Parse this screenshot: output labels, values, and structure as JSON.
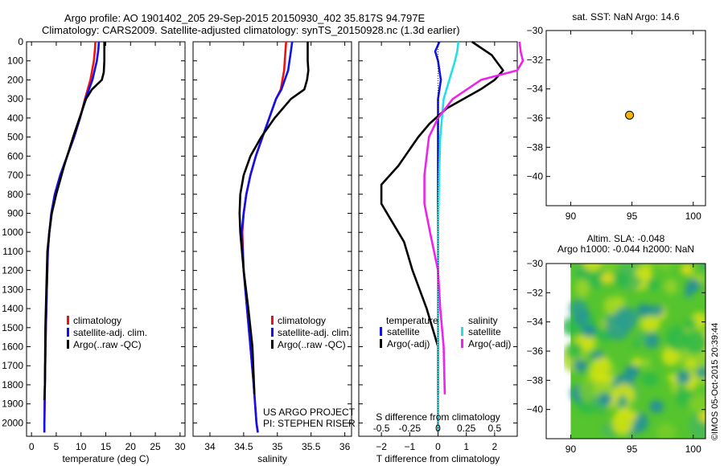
{
  "header": {
    "line1": "Argo profile: AO 1901402_205 29-Sep-2015 20150930_402 35.817S 94.797E",
    "line2": "Climatology: CARS2009. Satellite-adjusted climatology: synTS_20150928.nc (1.3d earlier)"
  },
  "colors": {
    "red": "#ee1111",
    "blue": "#1111ee",
    "black": "#000000",
    "cyan": "#22e0e8",
    "magenta": "#ee22ee",
    "marker": "#f2b705"
  },
  "chart_data": [
    {
      "type": "line",
      "id": "temperature",
      "xlabel": "temperature (deg C)",
      "ylabel": "",
      "xlim": [
        -1,
        31
      ],
      "ylim": [
        0,
        2070
      ],
      "xticks": [
        0,
        5,
        10,
        15,
        20,
        25,
        30
      ],
      "yticks": [
        0,
        100,
        200,
        300,
        400,
        500,
        600,
        700,
        800,
        900,
        1000,
        1100,
        1200,
        1300,
        1400,
        1500,
        1600,
        1700,
        1800,
        1900,
        2000
      ],
      "series": [
        {
          "name": "climatology",
          "color": "red",
          "x": [
            12.9,
            12.8,
            12.6,
            11.9,
            10.8,
            9.8,
            8.6,
            7.2,
            5.8,
            4.7,
            4.0,
            3.6,
            3.3,
            3.1,
            2.9,
            2.7,
            2.6,
            2.6
          ],
          "y": [
            0,
            40,
            100,
            200,
            300,
            400,
            500,
            600,
            700,
            800,
            900,
            1000,
            1100,
            1300,
            1500,
            1800,
            2000,
            2050
          ]
        },
        {
          "name": "satellite-adj. clim.",
          "color": "blue",
          "x": [
            13.6,
            13.5,
            13.2,
            12.3,
            10.9,
            9.8,
            8.6,
            7.2,
            5.8,
            4.7,
            4.0,
            3.6,
            3.3,
            3.1,
            2.9,
            2.7,
            2.6,
            2.6
          ],
          "y": [
            0,
            40,
            100,
            200,
            300,
            400,
            500,
            600,
            700,
            800,
            900,
            1000,
            1100,
            1300,
            1500,
            1800,
            2000,
            2050
          ]
        },
        {
          "name": "Argo(..raw -QC)",
          "color": "black",
          "x": [
            14.7,
            14.7,
            14.6,
            14.2,
            12.2,
            11.0,
            9.7,
            8.4,
            6.6,
            5.0,
            4.1,
            3.6,
            3.2,
            3.0,
            2.8,
            2.7,
            2.6
          ],
          "y": [
            0,
            100,
            160,
            200,
            250,
            300,
            400,
            500,
            650,
            800,
            900,
            1000,
            1100,
            1300,
            1500,
            1800,
            1880
          ]
        }
      ],
      "legend": [
        "climatology",
        "satellite-adj. clim.",
        "Argo(..raw -QC)"
      ]
    },
    {
      "type": "line",
      "id": "salinity",
      "xlabel": "salinity",
      "ylabel": "",
      "xlim": [
        33.75,
        36.1
      ],
      "ylim": [
        0,
        2070
      ],
      "xticks": [
        34,
        34.5,
        35,
        35.5,
        36
      ],
      "ticklabels": [
        "34",
        "34.5",
        "35",
        "35.5",
        "36"
      ],
      "series": [
        {
          "name": "climatology",
          "color": "red",
          "x": [
            35.13,
            35.12,
            35.1,
            35.05,
            34.98,
            34.88,
            34.78,
            34.68,
            34.6,
            34.54,
            34.5,
            34.48,
            34.5,
            34.55,
            34.6,
            34.65,
            34.69,
            34.71
          ],
          "y": [
            0,
            50,
            150,
            250,
            300,
            400,
            500,
            600,
            700,
            800,
            900,
            1000,
            1200,
            1400,
            1600,
            1800,
            2000,
            2050
          ]
        },
        {
          "name": "satellite-adj. clim.",
          "color": "blue",
          "x": [
            35.22,
            35.2,
            35.16,
            35.06,
            34.98,
            34.88,
            34.78,
            34.68,
            34.6,
            34.54,
            34.5,
            34.47,
            34.5,
            34.55,
            34.6,
            34.65,
            34.69,
            34.71
          ],
          "y": [
            0,
            50,
            150,
            250,
            300,
            400,
            500,
            600,
            700,
            800,
            900,
            1000,
            1200,
            1400,
            1600,
            1800,
            2000,
            2050
          ]
        },
        {
          "name": "Argo(..raw -QC)",
          "color": "black",
          "x": [
            35.45,
            35.45,
            35.46,
            35.44,
            35.4,
            35.2,
            34.96,
            34.76,
            34.6,
            34.5,
            34.45,
            34.44,
            34.45,
            34.5,
            34.57,
            34.63,
            34.66
          ],
          "y": [
            0,
            100,
            150,
            200,
            250,
            300,
            400,
            500,
            600,
            700,
            800,
            900,
            1000,
            1200,
            1400,
            1600,
            1850
          ]
        }
      ],
      "legend": [
        "climatology",
        "satellite-adj. clim.",
        "Argo(..raw -QC)"
      ],
      "annotation": [
        "US ARGO PROJECT",
        "PI: STEPHEN RISER"
      ]
    },
    {
      "type": "line",
      "id": "difference",
      "xlabel": "T difference from climatology",
      "xlabel2": "S difference from climatology",
      "ylabel": "",
      "xlim": [
        -2.8,
        2.8
      ],
      "ylim": [
        0,
        2070
      ],
      "xticks": [
        -2,
        -1,
        0,
        1,
        2
      ],
      "xticks_s": [
        -0.5,
        -0.25,
        0,
        0.25,
        0.5
      ],
      "ticklabels_s": [
        "-0.5",
        "-0.25",
        "0",
        "0.25",
        "0.5"
      ],
      "series": [
        {
          "name": "temperature satellite",
          "color": "blue",
          "x": [
            0.05,
            -0.1,
            0.0,
            0.1,
            0.0,
            0.0,
            0.0,
            0.0,
            0.0,
            0.0,
            0.0,
            0.0
          ],
          "y": [
            0,
            50,
            100,
            200,
            300,
            500,
            700,
            1000,
            1300,
            1600,
            1900,
            2050
          ]
        },
        {
          "name": "temperature Argo(-adj)",
          "color": "black",
          "x": [
            1.2,
            1.9,
            2.3,
            2.0,
            1.5,
            0.3,
            -0.3,
            -0.7,
            -1.4,
            -2.0,
            -2.0,
            -1.6,
            -1.2,
            -0.9,
            -0.4,
            0.0,
            0.0
          ],
          "y": [
            0,
            70,
            150,
            200,
            250,
            350,
            430,
            500,
            650,
            750,
            850,
            950,
            1050,
            1200,
            1400,
            1600,
            1850
          ]
        },
        {
          "name": "salinity satellite",
          "color": "cyan",
          "x": [
            0.18,
            0.17,
            0.15,
            0.1,
            0.05,
            0.02,
            0.01,
            0.0,
            0.0,
            0.0,
            0.0
          ],
          "y": [
            0,
            50,
            100,
            200,
            300,
            500,
            700,
            1000,
            1300,
            1600,
            2050
          ]
        },
        {
          "name": "salinity Argo(-adj)",
          "color": "magenta",
          "x": [
            0.72,
            0.73,
            0.75,
            0.7,
            0.38,
            0.13,
            0.0,
            -0.08,
            -0.12,
            -0.12,
            -0.07,
            0.0,
            0.02,
            0.05,
            0.06
          ],
          "y": [
            0,
            50,
            100,
            150,
            200,
            300,
            400,
            500,
            700,
            850,
            1000,
            1200,
            1400,
            1600,
            1850
          ]
        }
      ],
      "legend_headers": [
        "temperature",
        "salinity"
      ],
      "legend": [
        "satellite",
        "Argo(-adj)",
        "satellite",
        "Argo(-adj)"
      ]
    },
    {
      "type": "scatter",
      "id": "location",
      "title": "sat. SST: NaN Argo: 14.6",
      "xlim": [
        88,
        101
      ],
      "ylim": [
        -42,
        -30
      ],
      "xticks": [
        90,
        95,
        100
      ],
      "yticks": [
        -30,
        -32,
        -34,
        -36,
        -38,
        -40
      ],
      "points": [
        {
          "x": 94.8,
          "y": -35.8
        }
      ]
    },
    {
      "type": "heatmap",
      "id": "altimetry",
      "title1": "Altim. SLA: -0.048",
      "title2": "Argo h1000: -0.044 h2000: NaN",
      "xlim": [
        88,
        101
      ],
      "ylim": [
        -42,
        -30
      ],
      "xticks": [
        90,
        95,
        100
      ],
      "yticks": [
        -30,
        -32,
        -34,
        -36,
        -38,
        -40
      ],
      "field_extent": {
        "x": [
          90,
          101
        ],
        "y": [
          -42,
          -30
        ]
      }
    }
  ],
  "footer": {
    "imos": "©IMOS 05-Oct-2015 20:39:44"
  }
}
